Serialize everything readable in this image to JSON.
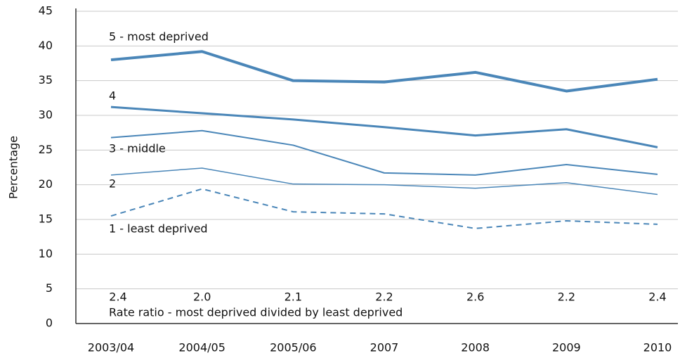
{
  "chart_data": {
    "type": "line",
    "y_label": "Percentage",
    "categories": [
      "2003/04",
      "2004/05",
      "2005/06",
      "2007",
      "2008",
      "2009",
      "2010"
    ],
    "series": [
      {
        "name": "5 - most deprived",
        "color": "#4a86b8",
        "values": [
          38.0,
          39.2,
          35.0,
          34.8,
          36.2,
          33.5,
          35.2
        ]
      },
      {
        "name": "4",
        "color": "#4a86b8",
        "values": [
          31.2,
          30.3,
          29.4,
          28.3,
          27.1,
          28.0,
          25.4
        ]
      },
      {
        "name": "3 - middle",
        "color": "#4a86b8",
        "values": [
          26.8,
          27.8,
          25.7,
          21.7,
          21.4,
          22.9,
          21.5
        ]
      },
      {
        "name": "2",
        "color": "#4a86b8",
        "values": [
          21.4,
          22.4,
          20.1,
          20.0,
          19.5,
          20.3,
          18.6
        ]
      },
      {
        "name": "1 - least deprived",
        "color": "#4a86b8",
        "dashed": true,
        "values": [
          15.5,
          19.4,
          16.1,
          15.8,
          13.7,
          14.8,
          14.3
        ]
      }
    ],
    "rate_ratio": {
      "label": "Rate ratio - most deprived divided by least deprived",
      "values": [
        2.4,
        2.0,
        2.1,
        2.2,
        2.6,
        2.2,
        2.4
      ],
      "value_labels": [
        "2.4",
        "2.0",
        "2.1",
        "2.2",
        "2.6",
        "2.2",
        "2.4"
      ]
    },
    "ylim": [
      0,
      45
    ],
    "yticks": [
      0,
      5,
      10,
      15,
      20,
      25,
      30,
      35,
      40,
      45
    ],
    "grid": true
  }
}
